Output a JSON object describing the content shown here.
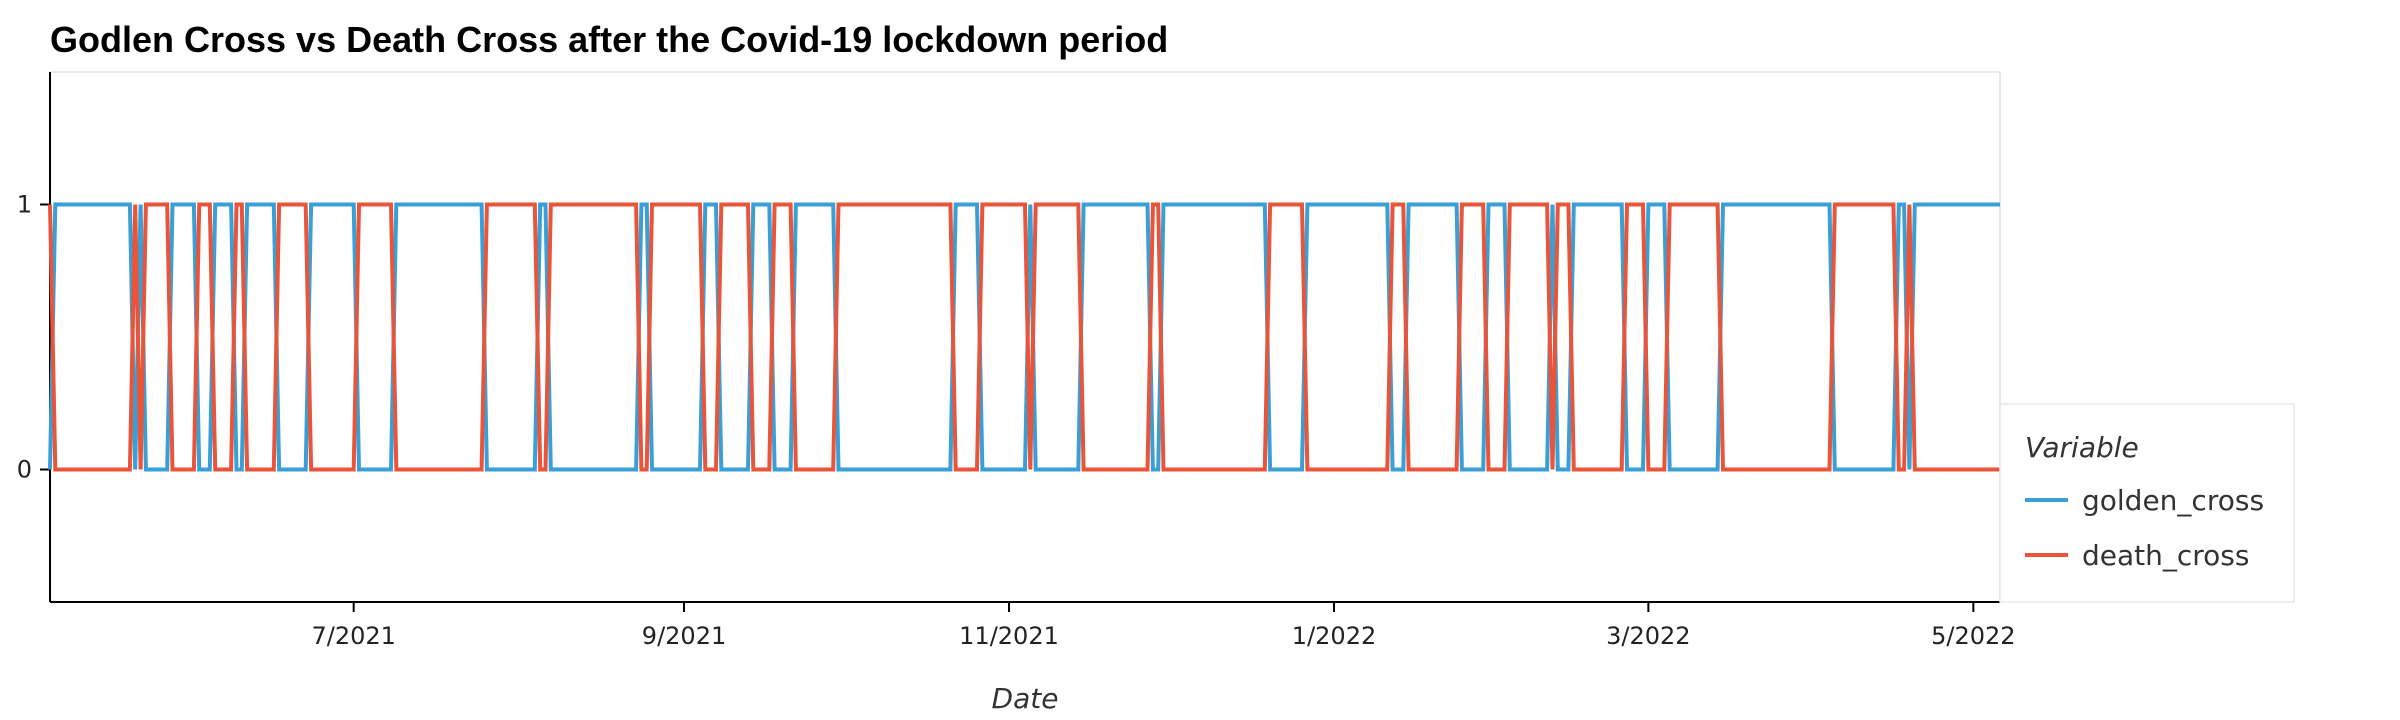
{
  "chart_data": {
    "type": "line",
    "title": "Godlen Cross vs Death Cross after the Covid-19 lockdown period",
    "xlabel": "Date",
    "ylabel": "",
    "x_range": [
      "2021-05-05",
      "2022-05-06"
    ],
    "ylim": [
      -0.5,
      1.5
    ],
    "y_ticks": [
      0,
      1
    ],
    "x_ticks": [
      {
        "date": "2021-07-01",
        "label": "7/2021"
      },
      {
        "date": "2021-09-01",
        "label": "9/2021"
      },
      {
        "date": "2021-11-01",
        "label": "11/2021"
      },
      {
        "date": "2022-01-01",
        "label": "1/2022"
      },
      {
        "date": "2022-03-01",
        "label": "3/2022"
      },
      {
        "date": "2022-05-01",
        "label": "5/2022"
      }
    ],
    "grid": false,
    "legend": {
      "title": "Variable",
      "placement": "right"
    },
    "series": [
      {
        "name": "golden_cross",
        "color": "#3a9fd6",
        "points": [
          [
            "2021-05-05",
            0
          ],
          [
            "2021-05-06",
            1
          ],
          [
            "2021-05-20",
            1
          ],
          [
            "2021-05-21",
            0
          ],
          [
            "2021-05-22",
            1
          ],
          [
            "2021-05-23",
            0
          ],
          [
            "2021-05-27",
            0
          ],
          [
            "2021-05-28",
            1
          ],
          [
            "2021-06-01",
            1
          ],
          [
            "2021-06-02",
            0
          ],
          [
            "2021-06-04",
            0
          ],
          [
            "2021-06-05",
            1
          ],
          [
            "2021-06-08",
            1
          ],
          [
            "2021-06-09",
            0
          ],
          [
            "2021-06-10",
            0
          ],
          [
            "2021-06-11",
            1
          ],
          [
            "2021-06-16",
            1
          ],
          [
            "2021-06-17",
            0
          ],
          [
            "2021-06-22",
            0
          ],
          [
            "2021-06-23",
            1
          ],
          [
            "2021-07-01",
            1
          ],
          [
            "2021-07-02",
            0
          ],
          [
            "2021-07-08",
            0
          ],
          [
            "2021-07-09",
            1
          ],
          [
            "2021-07-25",
            1
          ],
          [
            "2021-07-26",
            0
          ],
          [
            "2021-08-04",
            0
          ],
          [
            "2021-08-05",
            1
          ],
          [
            "2021-08-06",
            1
          ],
          [
            "2021-08-07",
            0
          ],
          [
            "2021-08-23",
            0
          ],
          [
            "2021-08-24",
            1
          ],
          [
            "2021-08-25",
            1
          ],
          [
            "2021-08-26",
            0
          ],
          [
            "2021-09-04",
            0
          ],
          [
            "2021-09-05",
            1
          ],
          [
            "2021-09-07",
            1
          ],
          [
            "2021-09-08",
            0
          ],
          [
            "2021-09-13",
            0
          ],
          [
            "2021-09-14",
            1
          ],
          [
            "2021-09-17",
            1
          ],
          [
            "2021-09-18",
            0
          ],
          [
            "2021-09-21",
            0
          ],
          [
            "2021-09-22",
            1
          ],
          [
            "2021-09-29",
            1
          ],
          [
            "2021-09-30",
            0
          ],
          [
            "2021-10-21",
            0
          ],
          [
            "2021-10-22",
            1
          ],
          [
            "2021-10-26",
            1
          ],
          [
            "2021-10-27",
            0
          ],
          [
            "2021-11-04",
            0
          ],
          [
            "2021-11-05",
            1
          ],
          [
            "2021-11-06",
            0
          ],
          [
            "2021-11-07",
            0
          ],
          [
            "2021-11-14",
            0
          ],
          [
            "2021-11-15",
            1
          ],
          [
            "2021-11-27",
            1
          ],
          [
            "2021-11-28",
            0
          ],
          [
            "2021-11-29",
            0
          ],
          [
            "2021-11-30",
            1
          ],
          [
            "2021-12-19",
            1
          ],
          [
            "2021-12-20",
            0
          ],
          [
            "2021-12-26",
            0
          ],
          [
            "2021-12-27",
            1
          ],
          [
            "2022-01-11",
            1
          ],
          [
            "2022-01-12",
            0
          ],
          [
            "2022-01-14",
            0
          ],
          [
            "2022-01-15",
            1
          ],
          [
            "2022-01-24",
            1
          ],
          [
            "2022-01-25",
            0
          ],
          [
            "2022-01-29",
            0
          ],
          [
            "2022-01-30",
            1
          ],
          [
            "2022-02-02",
            1
          ],
          [
            "2022-02-03",
            0
          ],
          [
            "2022-02-10",
            0
          ],
          [
            "2022-02-11",
            1
          ],
          [
            "2022-02-12",
            0
          ],
          [
            "2022-02-14",
            0
          ],
          [
            "2022-02-15",
            1
          ],
          [
            "2022-02-24",
            1
          ],
          [
            "2022-02-25",
            0
          ],
          [
            "2022-02-28",
            0
          ],
          [
            "2022-03-01",
            1
          ],
          [
            "2022-03-04",
            1
          ],
          [
            "2022-03-05",
            0
          ],
          [
            "2022-03-14",
            0
          ],
          [
            "2022-03-15",
            1
          ],
          [
            "2022-04-04",
            1
          ],
          [
            "2022-04-05",
            0
          ],
          [
            "2022-04-16",
            0
          ],
          [
            "2022-04-17",
            1
          ],
          [
            "2022-04-18",
            1
          ],
          [
            "2022-04-19",
            0
          ],
          [
            "2022-04-20",
            1
          ],
          [
            "2022-05-06",
            1
          ]
        ]
      },
      {
        "name": "death_cross",
        "color": "#e8553a",
        "points": [
          [
            "2021-05-05",
            1
          ],
          [
            "2021-05-06",
            0
          ],
          [
            "2021-05-20",
            0
          ],
          [
            "2021-05-21",
            1
          ],
          [
            "2021-05-22",
            0
          ],
          [
            "2021-05-23",
            1
          ],
          [
            "2021-05-27",
            1
          ],
          [
            "2021-05-28",
            0
          ],
          [
            "2021-06-01",
            0
          ],
          [
            "2021-06-02",
            1
          ],
          [
            "2021-06-04",
            1
          ],
          [
            "2021-06-05",
            0
          ],
          [
            "2021-06-08",
            0
          ],
          [
            "2021-06-09",
            1
          ],
          [
            "2021-06-10",
            1
          ],
          [
            "2021-06-11",
            0
          ],
          [
            "2021-06-16",
            0
          ],
          [
            "2021-06-17",
            1
          ],
          [
            "2021-06-22",
            1
          ],
          [
            "2021-06-23",
            0
          ],
          [
            "2021-07-01",
            0
          ],
          [
            "2021-07-02",
            1
          ],
          [
            "2021-07-08",
            1
          ],
          [
            "2021-07-09",
            0
          ],
          [
            "2021-07-25",
            0
          ],
          [
            "2021-07-26",
            1
          ],
          [
            "2021-08-04",
            1
          ],
          [
            "2021-08-05",
            0
          ],
          [
            "2021-08-06",
            0
          ],
          [
            "2021-08-07",
            1
          ],
          [
            "2021-08-23",
            1
          ],
          [
            "2021-08-24",
            0
          ],
          [
            "2021-08-25",
            0
          ],
          [
            "2021-08-26",
            1
          ],
          [
            "2021-09-04",
            1
          ],
          [
            "2021-09-05",
            0
          ],
          [
            "2021-09-07",
            0
          ],
          [
            "2021-09-08",
            1
          ],
          [
            "2021-09-13",
            1
          ],
          [
            "2021-09-14",
            0
          ],
          [
            "2021-09-17",
            0
          ],
          [
            "2021-09-18",
            1
          ],
          [
            "2021-09-21",
            1
          ],
          [
            "2021-09-22",
            0
          ],
          [
            "2021-09-29",
            0
          ],
          [
            "2021-09-30",
            1
          ],
          [
            "2021-10-21",
            1
          ],
          [
            "2021-10-22",
            0
          ],
          [
            "2021-10-26",
            0
          ],
          [
            "2021-10-27",
            1
          ],
          [
            "2021-11-04",
            1
          ],
          [
            "2021-11-05",
            0
          ],
          [
            "2021-11-06",
            1
          ],
          [
            "2021-11-07",
            1
          ],
          [
            "2021-11-14",
            1
          ],
          [
            "2021-11-15",
            0
          ],
          [
            "2021-11-27",
            0
          ],
          [
            "2021-11-28",
            1
          ],
          [
            "2021-11-29",
            1
          ],
          [
            "2021-11-30",
            0
          ],
          [
            "2021-12-19",
            0
          ],
          [
            "2021-12-20",
            1
          ],
          [
            "2021-12-26",
            1
          ],
          [
            "2021-12-27",
            0
          ],
          [
            "2022-01-11",
            0
          ],
          [
            "2022-01-12",
            1
          ],
          [
            "2022-01-14",
            1
          ],
          [
            "2022-01-15",
            0
          ],
          [
            "2022-01-24",
            0
          ],
          [
            "2022-01-25",
            1
          ],
          [
            "2022-01-29",
            1
          ],
          [
            "2022-01-30",
            0
          ],
          [
            "2022-02-02",
            0
          ],
          [
            "2022-02-03",
            1
          ],
          [
            "2022-02-10",
            1
          ],
          [
            "2022-02-11",
            0
          ],
          [
            "2022-02-12",
            1
          ],
          [
            "2022-02-14",
            1
          ],
          [
            "2022-02-15",
            0
          ],
          [
            "2022-02-24",
            0
          ],
          [
            "2022-02-25",
            1
          ],
          [
            "2022-02-28",
            1
          ],
          [
            "2022-03-01",
            0
          ],
          [
            "2022-03-04",
            0
          ],
          [
            "2022-03-05",
            1
          ],
          [
            "2022-03-14",
            1
          ],
          [
            "2022-03-15",
            0
          ],
          [
            "2022-04-04",
            0
          ],
          [
            "2022-04-05",
            1
          ],
          [
            "2022-04-16",
            1
          ],
          [
            "2022-04-17",
            0
          ],
          [
            "2022-04-18",
            0
          ],
          [
            "2022-04-19",
            1
          ],
          [
            "2022-04-20",
            0
          ],
          [
            "2022-05-06",
            0
          ]
        ]
      }
    ]
  }
}
